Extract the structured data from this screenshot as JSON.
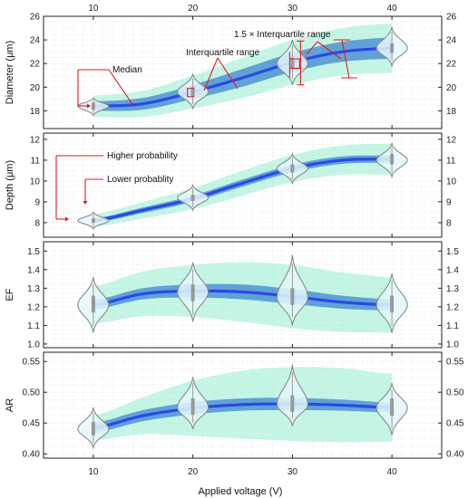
{
  "colors": {
    "band_outer": "#7ee8c6",
    "band_inner": "#3f86d0",
    "median_line": "#2a49e6",
    "violin_fill": "#e4f7fb",
    "violin_stroke": "#8a8a8a",
    "box": "#999999",
    "annotation": "#e11b1b",
    "grid": "#d9d9d9"
  },
  "chart_data": {
    "type": "violin-band",
    "x_ticks": [
      10,
      20,
      30,
      40
    ],
    "xlim": [
      5,
      45
    ],
    "xlabel": "Applied voltage (V)",
    "panels": [
      {
        "ylabel": "Diameter (μm)",
        "ylim": [
          16.5,
          26
        ],
        "yticks": [
          18,
          20,
          22,
          24,
          26
        ],
        "x": [
          10,
          20,
          30,
          40
        ],
        "medians": [
          18.4,
          19.6,
          22.0,
          23.3
        ],
        "curve_x": [
          10,
          15,
          20,
          25,
          30,
          35,
          40
        ],
        "curve_median": [
          18.4,
          18.6,
          19.6,
          20.8,
          22.1,
          23.0,
          23.3
        ],
        "curve_iqr_half": [
          0.4,
          0.5,
          0.6,
          0.75,
          0.8,
          0.85,
          0.9
        ],
        "curve_whisker_half": [
          0.9,
          1.1,
          1.4,
          1.7,
          1.9,
          2.0,
          2.1
        ],
        "violins": [
          {
            "x": 10,
            "low": 17.6,
            "high": 19.1,
            "mode": 18.4,
            "q1": 18.1,
            "q3": 18.7
          },
          {
            "x": 20,
            "low": 18.2,
            "high": 21.1,
            "mode": 19.6,
            "q1": 19.2,
            "q3": 20.0
          },
          {
            "x": 30,
            "low": 20.2,
            "high": 24.0,
            "mode": 22.0,
            "q1": 21.6,
            "q3": 22.5
          },
          {
            "x": 40,
            "low": 21.8,
            "high": 25.1,
            "mode": 23.3,
            "q1": 22.9,
            "q3": 23.7
          }
        ]
      },
      {
        "ylabel": "Depth (μm)",
        "ylim": [
          7.3,
          12.3
        ],
        "yticks": [
          8,
          9,
          10,
          11,
          12
        ],
        "x": [
          10,
          20,
          30,
          40
        ],
        "medians": [
          8.1,
          9.2,
          10.6,
          11.0
        ],
        "curve_x": [
          10,
          15,
          20,
          25,
          30,
          35,
          40
        ],
        "curve_median": [
          8.1,
          8.6,
          9.15,
          9.9,
          10.6,
          11.0,
          11.05
        ],
        "curve_iqr_half": [
          0.1,
          0.13,
          0.15,
          0.17,
          0.18,
          0.18,
          0.17
        ],
        "curve_whisker_half": [
          0.3,
          0.4,
          0.5,
          0.6,
          0.65,
          0.7,
          0.75
        ],
        "violins": [
          {
            "x": 10,
            "low": 7.7,
            "high": 8.5,
            "mode": 8.1,
            "q1": 8.0,
            "q3": 8.2
          },
          {
            "x": 20,
            "low": 8.6,
            "high": 9.8,
            "mode": 9.2,
            "q1": 9.05,
            "q3": 9.35
          },
          {
            "x": 30,
            "low": 9.9,
            "high": 11.3,
            "mode": 10.6,
            "q1": 10.4,
            "q3": 10.8
          },
          {
            "x": 40,
            "low": 10.2,
            "high": 11.8,
            "mode": 11.0,
            "q1": 10.8,
            "q3": 11.3
          }
        ]
      },
      {
        "ylabel": "EF",
        "ylim": [
          0.98,
          1.55
        ],
        "yticks": [
          1.0,
          1.1,
          1.2,
          1.3,
          1.4,
          1.5
        ],
        "x": [
          10,
          20,
          30,
          40
        ],
        "medians": [
          1.21,
          1.28,
          1.25,
          1.21
        ],
        "curve_x": [
          10,
          15,
          20,
          25,
          30,
          35,
          40
        ],
        "curve_median": [
          1.21,
          1.27,
          1.285,
          1.28,
          1.255,
          1.225,
          1.21
        ],
        "curve_iqr_half": [
          0.025,
          0.03,
          0.035,
          0.04,
          0.04,
          0.035,
          0.03
        ],
        "curve_whisker_half": [
          0.1,
          0.12,
          0.14,
          0.16,
          0.17,
          0.16,
          0.15
        ],
        "violins": [
          {
            "x": 10,
            "low": 1.06,
            "high": 1.36,
            "mode": 1.21,
            "q1": 1.17,
            "q3": 1.26
          },
          {
            "x": 20,
            "low": 1.12,
            "high": 1.44,
            "mode": 1.28,
            "q1": 1.23,
            "q3": 1.32
          },
          {
            "x": 30,
            "low": 1.1,
            "high": 1.48,
            "mode": 1.25,
            "q1": 1.21,
            "q3": 1.3
          },
          {
            "x": 40,
            "low": 1.06,
            "high": 1.38,
            "mode": 1.21,
            "q1": 1.17,
            "q3": 1.26
          }
        ]
      },
      {
        "ylabel": "AR",
        "ylim": [
          0.393,
          0.565
        ],
        "yticks": [
          0.4,
          0.45,
          0.5,
          0.55
        ],
        "x": [
          10,
          20,
          30,
          40
        ],
        "medians": [
          0.44,
          0.475,
          0.48,
          0.475
        ],
        "curve_x": [
          10,
          15,
          20,
          25,
          30,
          35,
          40
        ],
        "curve_median": [
          0.442,
          0.462,
          0.474,
          0.48,
          0.481,
          0.479,
          0.475
        ],
        "curve_iqr_half": [
          0.008,
          0.009,
          0.01,
          0.01,
          0.01,
          0.009,
          0.008
        ],
        "curve_whisker_half": [
          0.02,
          0.03,
          0.045,
          0.055,
          0.06,
          0.06,
          0.055
        ],
        "violins": [
          {
            "x": 10,
            "low": 0.41,
            "high": 0.475,
            "mode": 0.44,
            "q1": 0.43,
            "q3": 0.452
          },
          {
            "x": 20,
            "low": 0.44,
            "high": 0.525,
            "mode": 0.475,
            "q1": 0.463,
            "q3": 0.49
          },
          {
            "x": 30,
            "low": 0.445,
            "high": 0.545,
            "mode": 0.48,
            "q1": 0.468,
            "q3": 0.495
          },
          {
            "x": 40,
            "low": 0.43,
            "high": 0.515,
            "mode": 0.475,
            "q1": 0.462,
            "q3": 0.49
          }
        ]
      }
    ],
    "annotations": {
      "median": "Median",
      "iqr": "Interquartile range",
      "whisker": "1.5 × Interquartile range",
      "higher": "Higher probability",
      "lower": "Lower probablity"
    }
  }
}
